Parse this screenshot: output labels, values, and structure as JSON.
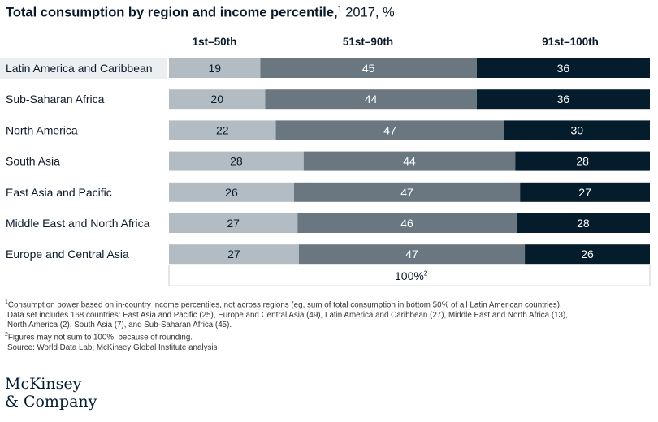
{
  "title": {
    "bold": "Total consumption by region and income percentile,",
    "marker": "1",
    "unit": "2017, %"
  },
  "columns": [
    "1st–50th",
    "51st–90th",
    "91st–100th"
  ],
  "axis_label": {
    "text": "100%",
    "marker": "2"
  },
  "footnotes": {
    "n1_marker": "1",
    "n1_line1": "Consumption power based on in-country income percentiles, not across regions (eg, sum of total consumption in bottom 50% of all Latin American countries).",
    "n1_line2": "Data set includes 168 countries: East Asia and Pacific (25), Europe and Central Asia (49), Latin America and Caribbean (27), Middle East and North Africa (13),",
    "n1_line3": "North America (2), South Asia (7), and Sub-Saharan Africa (45).",
    "n2_marker": "2",
    "n2_line1": "Figures may not sum to 100%, because of rounding.",
    "source": "Source: World Data Lab; McKinsey Global Institute analysis"
  },
  "logo": {
    "line1": "McKinsey",
    "line2": "& Company"
  },
  "colors": {
    "s1": "#b4bcc3",
    "s2": "#6b7780",
    "s3": "#051c2c",
    "text_dark": "#0a1a2a",
    "text_light": "#ffffff"
  },
  "chart_data": {
    "type": "bar",
    "orientation": "horizontal-stacked",
    "title": "Total consumption by region and income percentile, 2017, %",
    "categories": [
      "Latin America and Caribbean",
      "Sub-Saharan Africa",
      "North America",
      "South Asia",
      "East Asia and Pacific",
      "Middle East and North Africa",
      "Europe and Central Asia"
    ],
    "series": [
      {
        "name": "1st–50th",
        "values": [
          19,
          20,
          22,
          28,
          26,
          27,
          27
        ]
      },
      {
        "name": "51st–90th",
        "values": [
          45,
          44,
          47,
          44,
          47,
          46,
          47
        ]
      },
      {
        "name": "91st–100th",
        "values": [
          36,
          36,
          30,
          28,
          27,
          28,
          26
        ]
      }
    ],
    "xlabel": "100%",
    "xlim": [
      0,
      100
    ]
  }
}
